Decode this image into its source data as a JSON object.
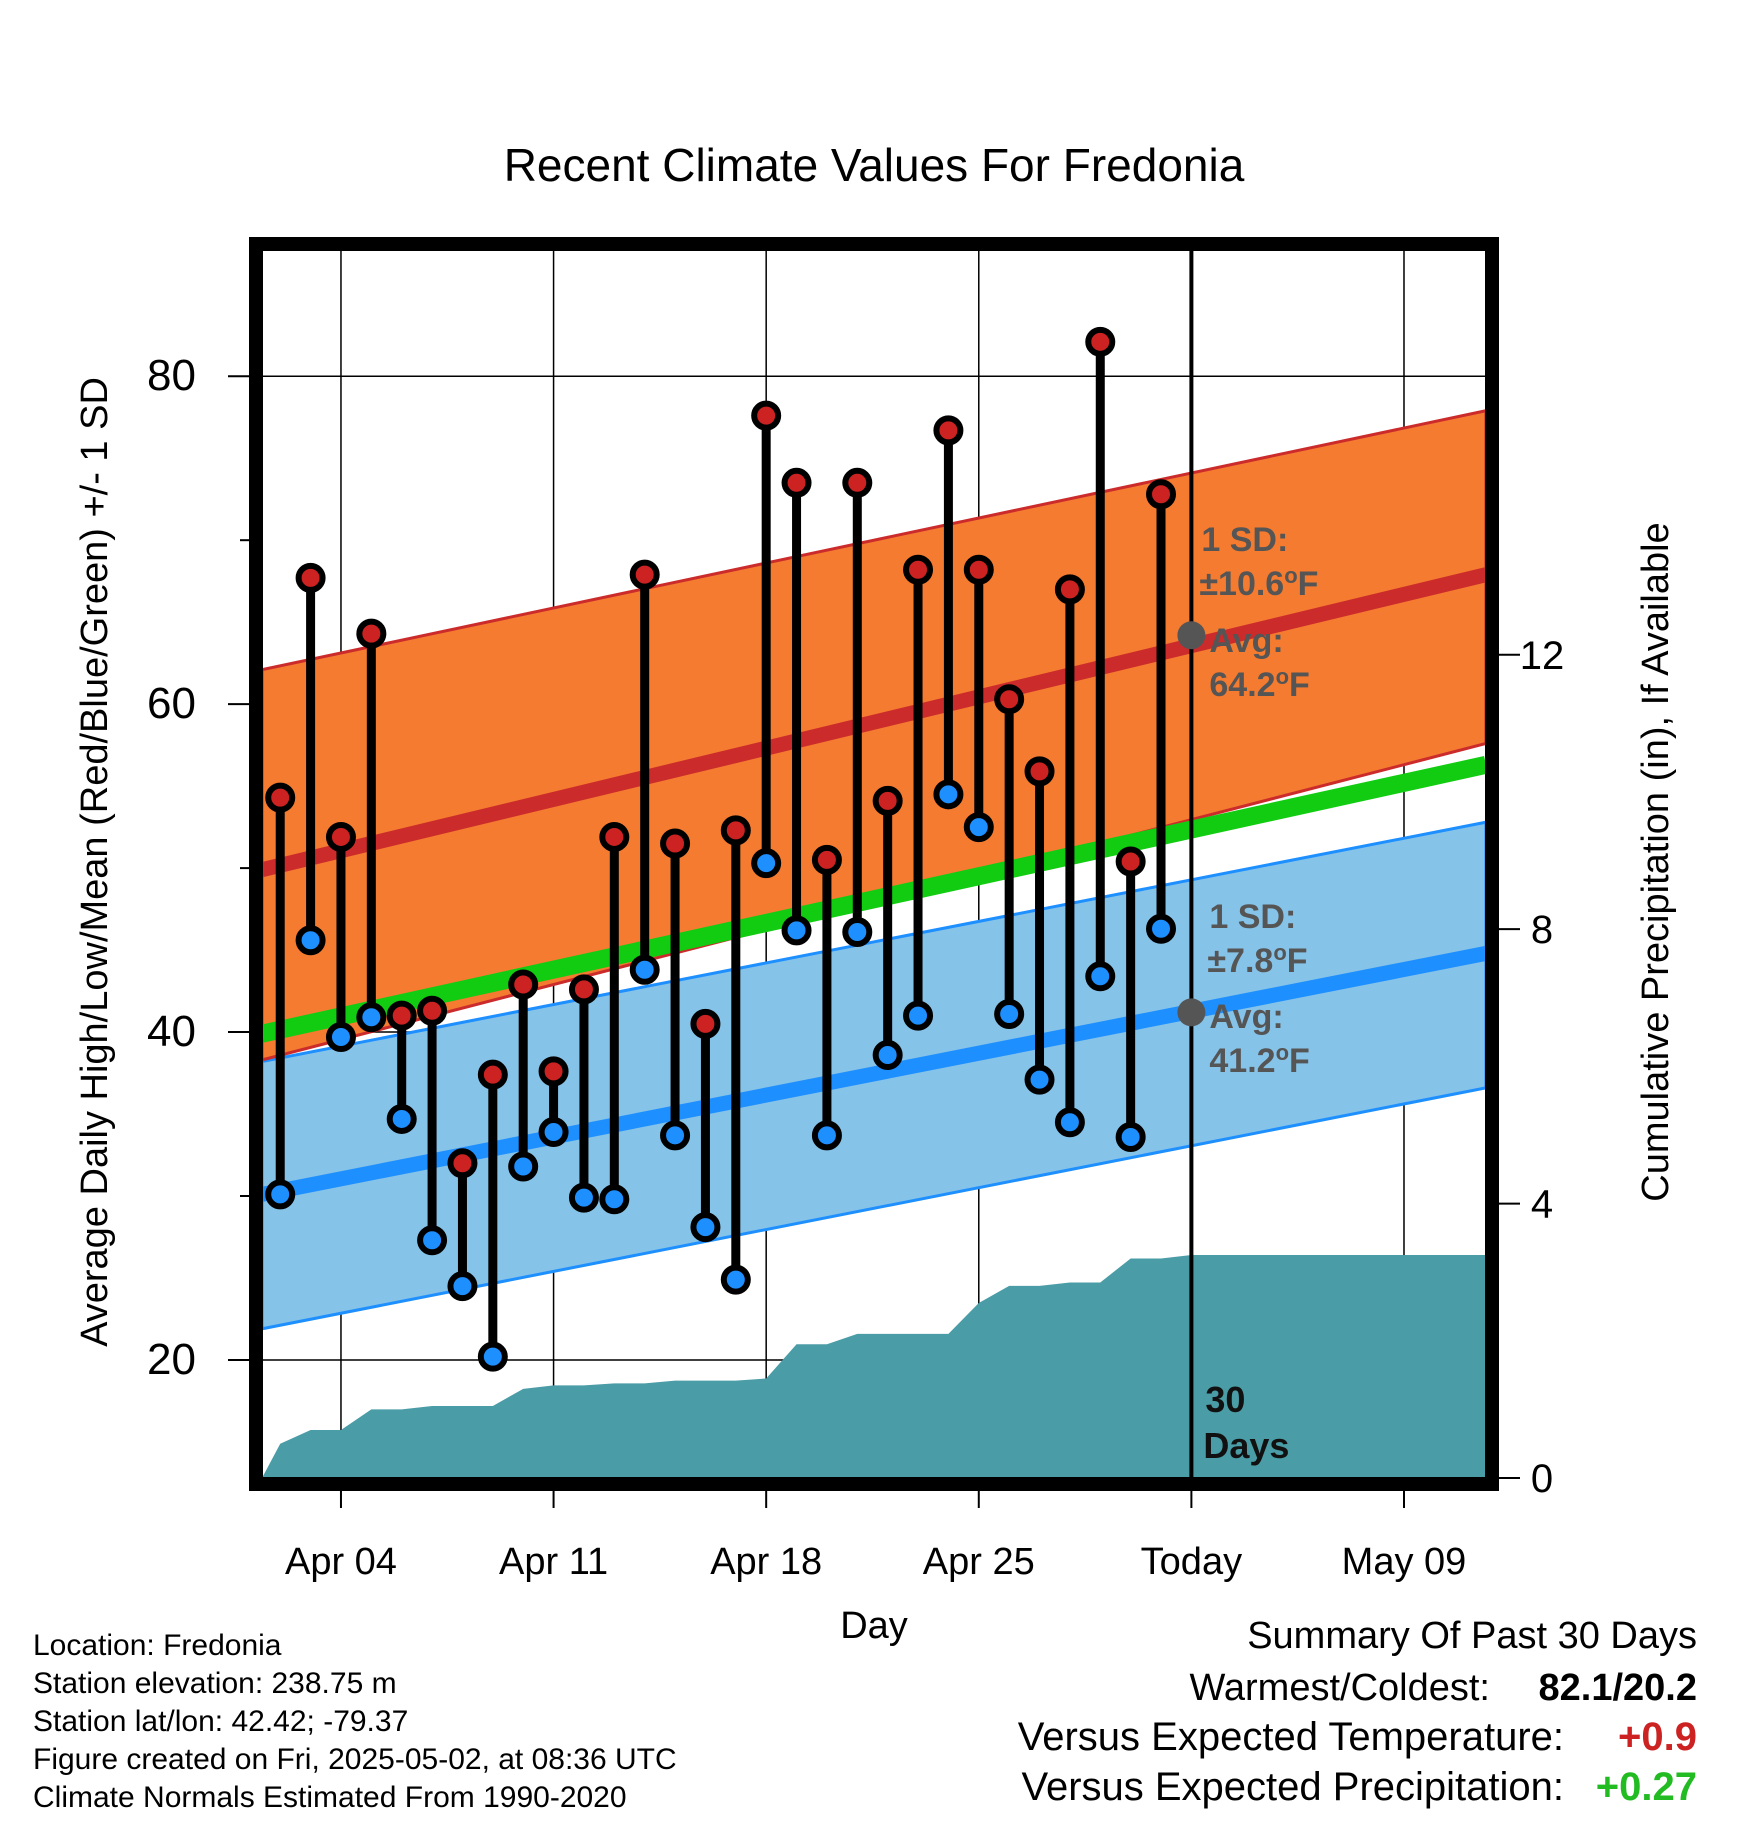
{
  "chart_data": {
    "type": "line",
    "title": "Recent Climate Values For Fredonia",
    "xlabel": "Day",
    "ylabel_left": "Average Daily High/Low/Mean (Red/Blue/Green) +/- 1 SD",
    "ylabel_right": "Cumulative Precipitation (in), If Available",
    "x_tick_labels": [
      "Apr 04",
      "Apr 11",
      "Apr 18",
      "Apr 25",
      "Today",
      "May 09"
    ],
    "x_tick_days": [
      4,
      11,
      18,
      25,
      32,
      39
    ],
    "x_range_days": [
      1.4,
      41.7
    ],
    "today_day": 32,
    "y_left_ticks": [
      20,
      40,
      60,
      80
    ],
    "y_left_range": [
      12.8,
      87.7
    ],
    "y_right_ticks": [
      0,
      4,
      8,
      12
    ],
    "y_right_range": [
      0,
      17.9
    ],
    "grid": true,
    "normals": {
      "high_mean": [
        49.9,
        67.9
      ],
      "high_upper": [
        62.1,
        77.9
      ],
      "high_lower": [
        38.3,
        57.6
      ],
      "low_mean": [
        30.1,
        44.8
      ],
      "low_upper": [
        38.2,
        52.8
      ],
      "low_lower": [
        21.9,
        36.6
      ],
      "mean": [
        39.9,
        56.3
      ]
    },
    "colors": {
      "high_band": "#f47b30",
      "high_line": "#cc2b2b",
      "low_band": "#86c3e8",
      "low_line": "#1e8fff",
      "mean_line": "#11cc11",
      "precip_fill": "#4a9ca6",
      "high_dot": "#cc2222",
      "low_dot": "#1e8fff",
      "annotation_text": "#555555",
      "warm_text": "#cc2222",
      "wet_text": "#22bb22"
    },
    "daily": {
      "days": [
        2,
        3,
        4,
        5,
        6,
        7,
        8,
        9,
        10,
        11,
        12,
        13,
        14,
        15,
        16,
        17,
        18,
        19,
        20,
        21,
        22,
        23,
        24,
        25,
        26,
        27,
        28,
        29,
        30,
        31
      ],
      "highs": [
        54.3,
        67.7,
        51.9,
        64.3,
        41.0,
        41.3,
        32.0,
        37.4,
        42.9,
        37.6,
        42.6,
        51.9,
        67.9,
        51.5,
        40.5,
        52.3,
        77.6,
        73.5,
        50.5,
        73.5,
        54.1,
        68.2,
        76.7,
        68.2,
        60.3,
        55.9,
        67.0,
        82.1,
        50.4,
        72.8
      ],
      "lows": [
        30.1,
        45.6,
        39.7,
        40.9,
        34.7,
        27.3,
        24.5,
        20.2,
        31.8,
        33.9,
        29.9,
        29.8,
        43.8,
        33.7,
        28.1,
        24.9,
        50.3,
        46.2,
        33.7,
        46.1,
        38.6,
        41.0,
        54.5,
        52.5,
        41.1,
        37.1,
        34.5,
        43.4,
        33.6,
        46.3
      ]
    },
    "precip": {
      "days": [
        1.4,
        2,
        3,
        4,
        5,
        6,
        7,
        8,
        9,
        10,
        11,
        12,
        13,
        14,
        15,
        16,
        17,
        18,
        19,
        20,
        21,
        22,
        23,
        24,
        25,
        26,
        27,
        28,
        29,
        30,
        31,
        32,
        41.7
      ],
      "cumulative": [
        0.0,
        0.5,
        0.7,
        0.7,
        1.0,
        1.0,
        1.05,
        1.05,
        1.05,
        1.3,
        1.35,
        1.35,
        1.38,
        1.38,
        1.42,
        1.42,
        1.42,
        1.45,
        1.95,
        1.95,
        2.1,
        2.1,
        2.1,
        2.1,
        2.55,
        2.8,
        2.8,
        2.85,
        2.85,
        3.2,
        3.2,
        3.25,
        3.25
      ]
    },
    "annotations": {
      "high_sd_label": "1 SD:",
      "high_sd_value": "±10.6",
      "high_avg_label": "Avg:",
      "high_avg_value": "64.2",
      "high_avg_marker": 64.2,
      "low_sd_label": "1 SD:",
      "low_sd_value": "±7.8",
      "low_avg_label": "Avg:",
      "low_avg_value": "41.2",
      "low_avg_marker": 41.2,
      "degree_symbol": "o",
      "unit": "F",
      "days_number": "30",
      "days_word": "Days"
    }
  },
  "station": {
    "location": "Location: Fredonia",
    "elevation": "Station elevation: 238.75 m",
    "latlon": "Station lat/lon: 42.42; -79.37",
    "created": "Figure created on Fri, 2025-05-02, at 08:36 UTC",
    "normals_period": "Climate Normals Estimated From 1990-2020"
  },
  "summary": {
    "heading": "Summary Of Past 30 Days",
    "warm_cold_label": "Warmest/Coldest:",
    "warm_cold_value": "82.1/20.2",
    "temp_label": "Versus Expected Temperature:",
    "temp_value": "+0.9",
    "precip_label": "Versus Expected Precipitation:",
    "precip_value": "+0.27"
  }
}
